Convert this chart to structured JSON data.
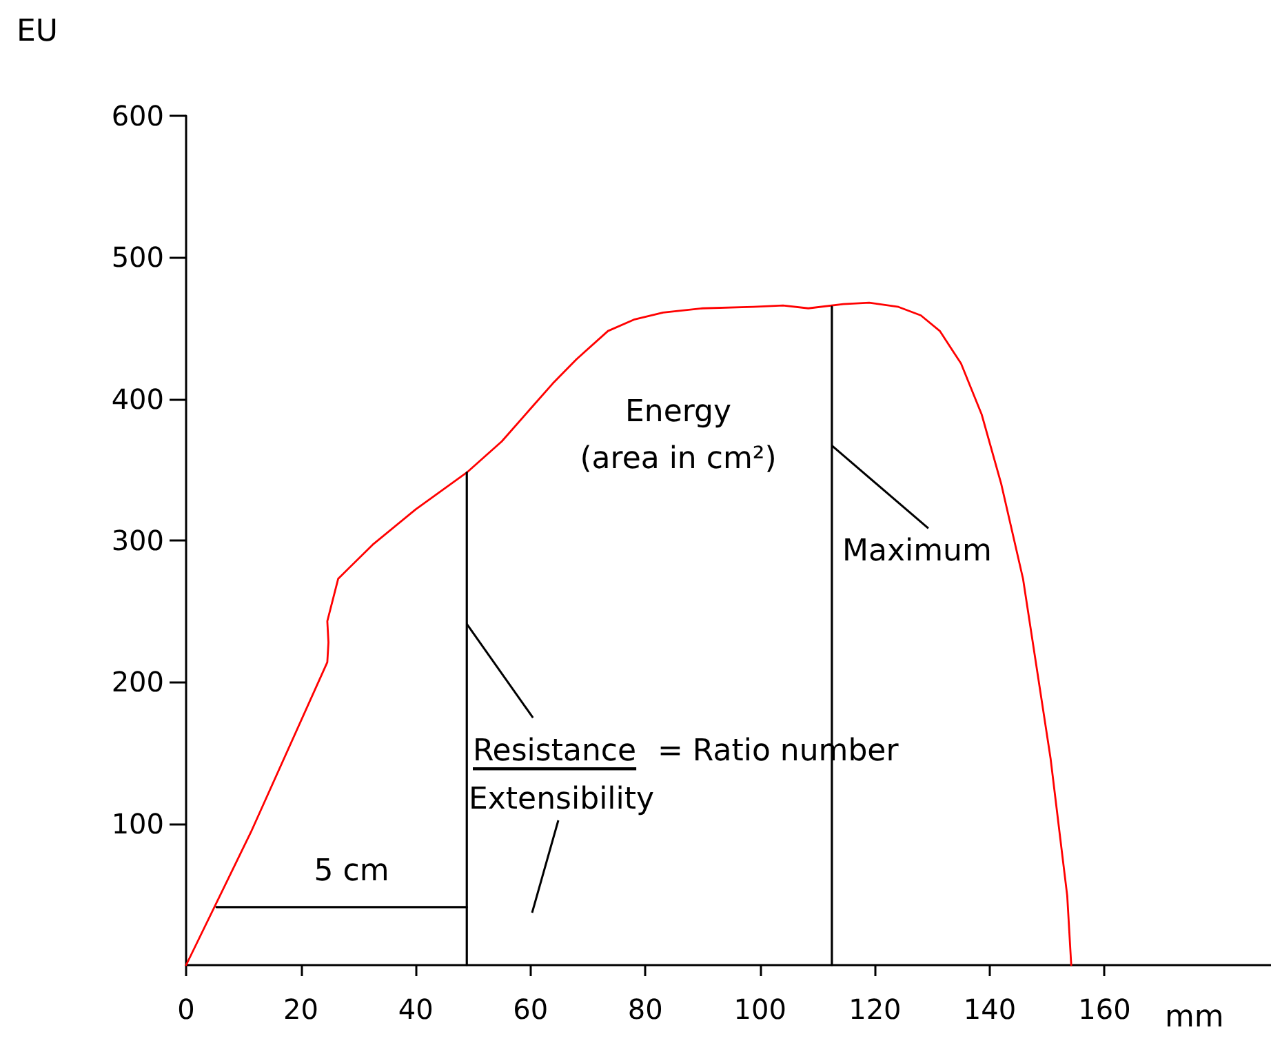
{
  "chart_data": {
    "type": "line",
    "xlabel": "mm",
    "ylabel": "EU",
    "xlim": [
      0,
      189
    ],
    "ylim": [
      0,
      600
    ],
    "xticks": [
      0,
      20,
      40,
      60,
      80,
      100,
      120,
      140,
      160
    ],
    "yticks": [
      100,
      200,
      300,
      400,
      500,
      600
    ],
    "grid": false,
    "marker": "none",
    "line_style": "solid",
    "series": [
      {
        "color": "#ff0000",
        "x": [
          0,
          11.3,
          24.6,
          24.8,
          24.6,
          26.5,
          32.5,
          40,
          48.9,
          55,
          60.2,
          63.9,
          68,
          73.5,
          78,
          83.1,
          90,
          98.8,
          104,
          108.4,
          114.5,
          119,
          124.1,
          128,
          131.3,
          135,
          138.6,
          142,
          145.8,
          150.6,
          153.5,
          154.2
        ],
        "values": [
          0,
          94,
          214,
          228,
          243,
          273,
          297,
          322,
          348,
          370,
          394,
          411,
          428,
          448,
          456,
          461,
          464,
          465,
          466,
          464,
          467,
          468,
          465,
          459,
          448,
          425,
          389,
          340,
          273,
          146,
          49,
          0
        ]
      },
      {
        "color": "#000000",
        "x": [
          48.9,
          48.9
        ],
        "values": [
          0,
          348
        ]
      },
      {
        "color": "#000000",
        "x": [
          112.5,
          112.5
        ],
        "values": [
          0,
          465
        ]
      },
      {
        "color": "#000000",
        "x": [
          5.3,
          48.9
        ],
        "values": [
          41,
          41
        ]
      }
    ],
    "annotations": [
      "Energy\n(area in cm²)",
      "5 cm",
      {
        "text": "Resistance",
        "x": 48.9,
        "y": 241
      },
      "= Ratio number",
      "Extensibility",
      {
        "text": "Maximum",
        "x": 112.5,
        "y": 367
      }
    ]
  }
}
